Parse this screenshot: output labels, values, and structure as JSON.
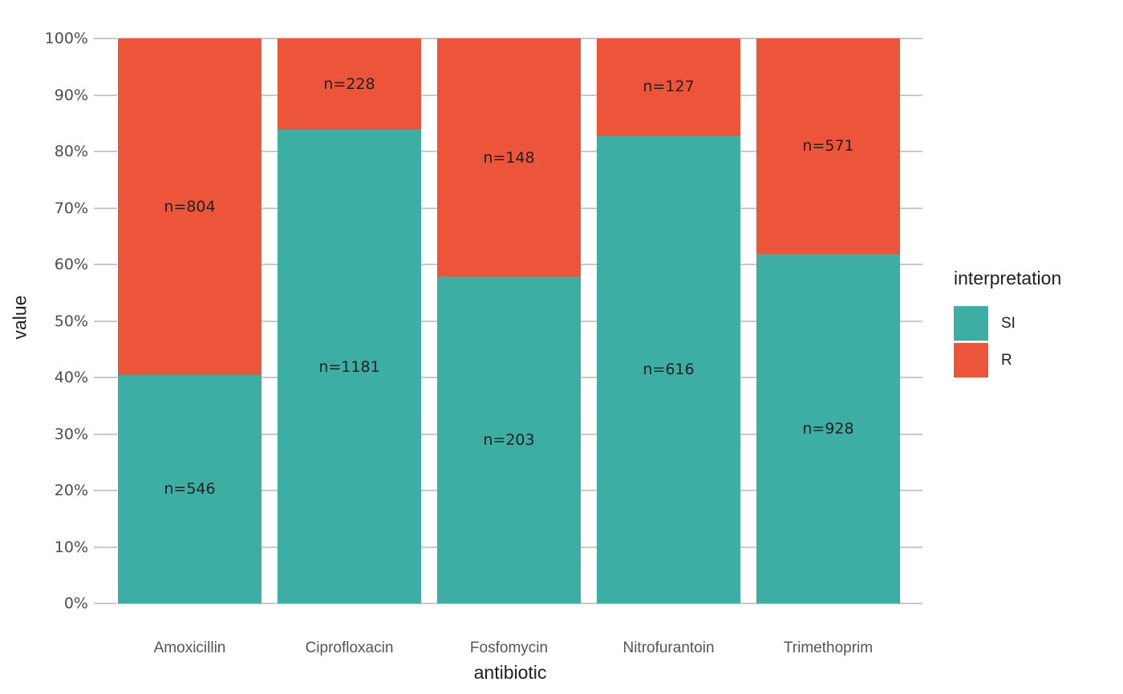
{
  "chart_data": {
    "type": "bar",
    "stacked": true,
    "normalized_to_percent": true,
    "title": "",
    "xlabel": "antibiotic",
    "ylabel": "value",
    "categories": [
      "Amoxicillin",
      "Ciprofloxacin",
      "Fosfomycin",
      "Nitrofurantoin",
      "Trimethoprim"
    ],
    "series": [
      {
        "name": "SI",
        "color": "#3CAEA3",
        "values": [
          546,
          1181,
          203,
          616,
          928
        ],
        "percent_of_total": [
          40.4,
          83.8,
          57.8,
          82.9,
          61.9
        ],
        "bar_labels": [
          "n=546",
          "n=1181",
          "n=203",
          "n=616",
          "n=928"
        ]
      },
      {
        "name": "R",
        "color": "#ED553B",
        "values": [
          804,
          228,
          148,
          127,
          571
        ],
        "percent_of_total": [
          59.6,
          16.2,
          42.2,
          17.1,
          38.1
        ],
        "bar_labels": [
          "n=804",
          "n=228",
          "n=148",
          "n=127",
          "n=571"
        ]
      }
    ],
    "y_ticks": [
      "0%",
      "10%",
      "20%",
      "30%",
      "40%",
      "50%",
      "60%",
      "70%",
      "80%",
      "90%",
      "100%"
    ],
    "ylim": [
      0,
      100
    ],
    "grid": true,
    "grid_color": "#c9c9c9",
    "background": "#ffffff",
    "legend": {
      "position": "right",
      "title": "interpretation",
      "entries": [
        {
          "label": "SI",
          "color": "#3CAEA3"
        },
        {
          "label": "R",
          "color": "#ED553B"
        }
      ]
    }
  }
}
